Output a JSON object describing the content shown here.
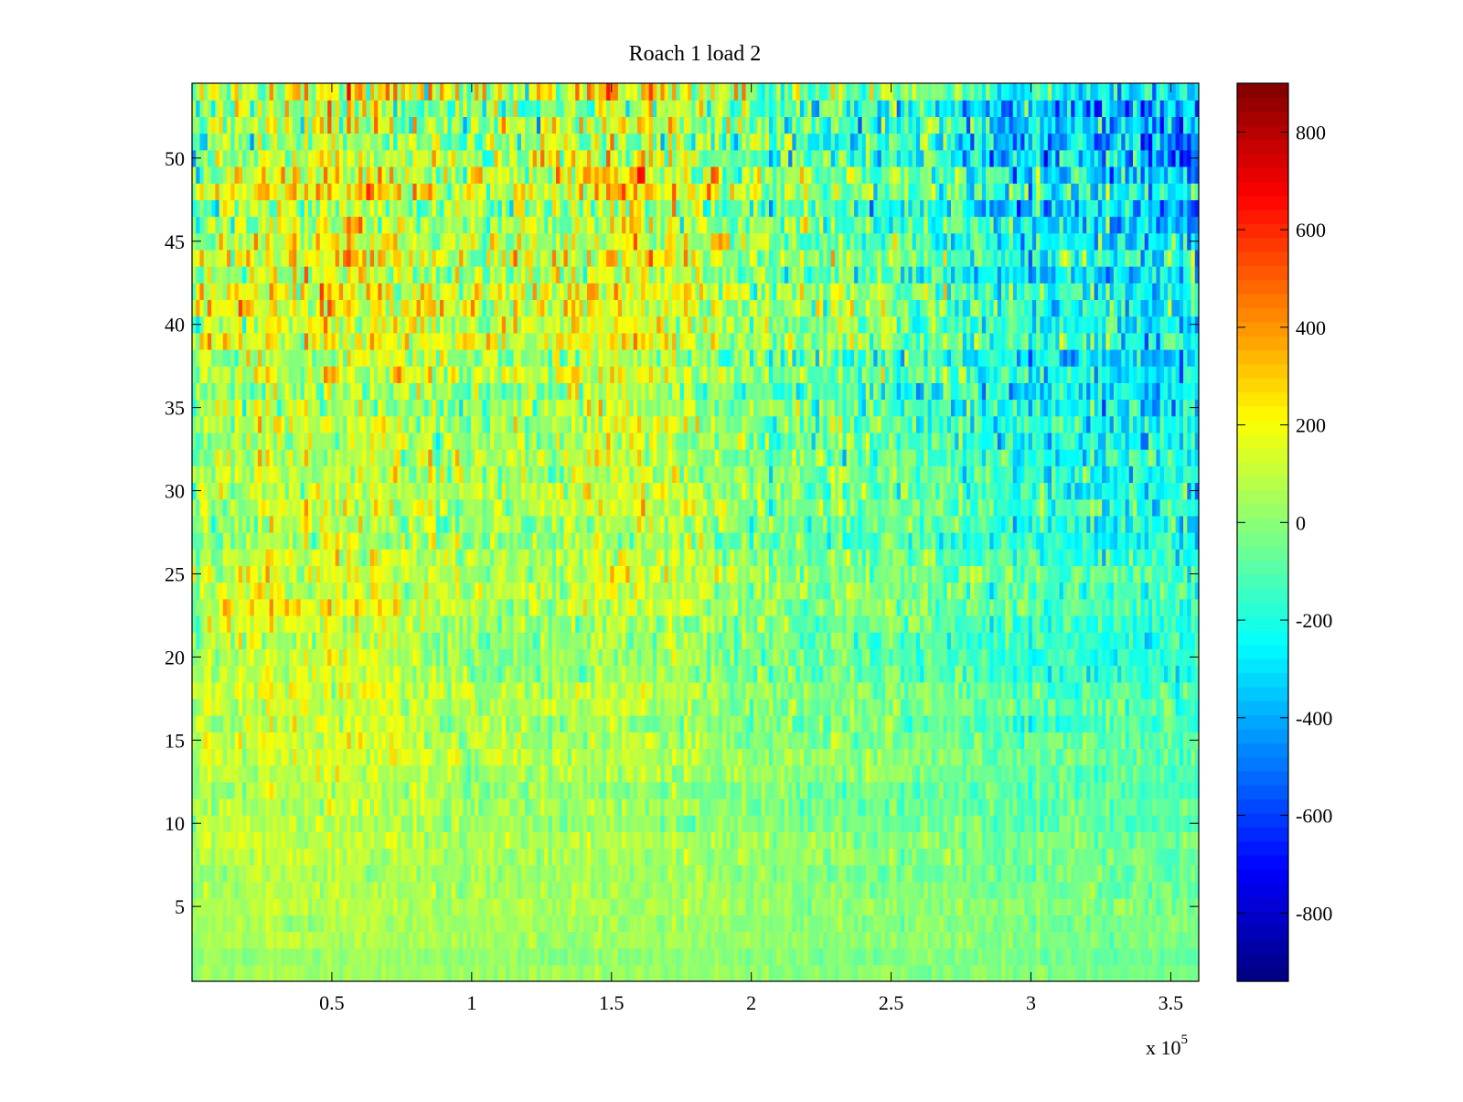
{
  "chart_data": {
    "type": "heatmap",
    "title": "Roach 1 load 2",
    "xlabel": "",
    "ylabel": "",
    "colormap": "jet",
    "x_range": [
      0,
      360000
    ],
    "y_range": [
      0.5,
      54.5
    ],
    "x_ticks": [
      50000,
      100000,
      150000,
      200000,
      250000,
      300000,
      350000
    ],
    "x_tick_labels": [
      "0.5",
      "1",
      "1.5",
      "2",
      "2.5",
      "3",
      "3.5"
    ],
    "x_exponent": {
      "base": "x 10",
      "power": "5"
    },
    "y_ticks": [
      5,
      10,
      15,
      20,
      25,
      30,
      35,
      40,
      45,
      50
    ],
    "y_tick_labels": [
      "5",
      "10",
      "15",
      "20",
      "25",
      "30",
      "35",
      "40",
      "45",
      "50"
    ],
    "colorbar": {
      "range": [
        -940,
        900
      ],
      "ticks": [
        -800,
        -600,
        -400,
        -200,
        0,
        200,
        400,
        600,
        800
      ],
      "tick_labels": [
        "-800",
        "-600",
        "-400",
        "-200",
        "0",
        "200",
        "400",
        "600",
        "800"
      ]
    },
    "rows": 54,
    "grid": false
  }
}
